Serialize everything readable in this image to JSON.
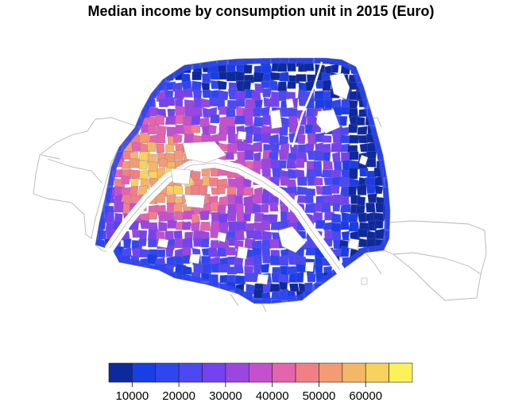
{
  "title": "Median income by consumption unit in 2015 (Euro)",
  "legend": {
    "breaks": [
      5000,
      10000,
      15000,
      20000,
      25000,
      30000,
      35000,
      40000,
      45000,
      50000,
      55000,
      60000,
      65000,
      70000
    ],
    "colors": [
      "#0d2a9c",
      "#1a3ee6",
      "#2f46ef",
      "#4c48f2",
      "#7443ef",
      "#9a46df",
      "#c450cf",
      "#e464ad",
      "#f17f86",
      "#f39b72",
      "#f4b766",
      "#f6d35c",
      "#fbf25a"
    ],
    "tick_values": [
      10000,
      20000,
      30000,
      40000,
      50000,
      60000
    ],
    "tick_labels": [
      "10000",
      "20000",
      "30000",
      "40000",
      "50000",
      "60000"
    ]
  }
}
